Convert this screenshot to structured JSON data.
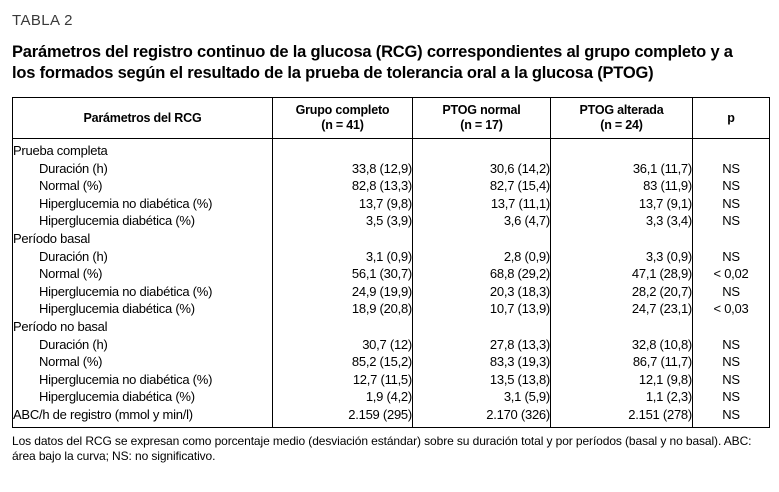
{
  "table_label": "TABLA 2",
  "title": "Parámetros del registro continuo de la glucosa (RCG) correspondientes al grupo completo y a los formados según el resultado de la prueba de tolerancia oral a la glucosa (PTOG)",
  "table": {
    "columns": [
      {
        "label": "Parámetros del RCG",
        "sub": ""
      },
      {
        "label": "Grupo completo",
        "sub": "(n = 41)"
      },
      {
        "label": "PTOG normal",
        "sub": "(n = 17)"
      },
      {
        "label": "PTOG alterada",
        "sub": "(n = 24)"
      },
      {
        "label": "p",
        "sub": ""
      }
    ],
    "rows": [
      {
        "label": "Prueba completa",
        "section": true,
        "indent": false,
        "values": [
          "",
          "",
          "",
          ""
        ]
      },
      {
        "label": "Duración (h)",
        "section": false,
        "indent": true,
        "values": [
          "33,8 (12,9)",
          "30,6 (14,2)",
          "36,1 (11,7)",
          "NS"
        ]
      },
      {
        "label": "Normal (%)",
        "section": false,
        "indent": true,
        "values": [
          "82,8 (13,3)",
          "82,7 (15,4)",
          "83 (11,9)",
          "NS"
        ]
      },
      {
        "label": "Hiperglucemia no diabética (%)",
        "section": false,
        "indent": true,
        "values": [
          "13,7 (9,8)",
          "13,7 (11,1)",
          "13,7 (9,1)",
          "NS"
        ]
      },
      {
        "label": "Hiperglucemia diabética (%)",
        "section": false,
        "indent": true,
        "values": [
          "3,5 (3,9)",
          "3,6 (4,7)",
          "3,3 (3,4)",
          "NS"
        ]
      },
      {
        "label": "Período basal",
        "section": true,
        "indent": false,
        "values": [
          "",
          "",
          "",
          ""
        ]
      },
      {
        "label": "Duración (h)",
        "section": false,
        "indent": true,
        "values": [
          "3,1 (0,9)",
          "2,8 (0,9)",
          "3,3 (0,9)",
          "NS"
        ]
      },
      {
        "label": "Normal (%)",
        "section": false,
        "indent": true,
        "values": [
          "56,1 (30,7)",
          "68,8 (29,2)",
          "47,1 (28,9)",
          "< 0,02"
        ]
      },
      {
        "label": "Hiperglucemia no diabética (%)",
        "section": false,
        "indent": true,
        "values": [
          "24,9 (19,9)",
          "20,3 (18,3)",
          "28,2 (20,7)",
          "NS"
        ]
      },
      {
        "label": "Hiperglucemia diabética (%)",
        "section": false,
        "indent": true,
        "values": [
          "18,9 (20,8)",
          "10,7 (13,9)",
          "24,7 (23,1)",
          "< 0,03"
        ]
      },
      {
        "label": "Período no basal",
        "section": true,
        "indent": false,
        "values": [
          "",
          "",
          "",
          ""
        ]
      },
      {
        "label": "Duración (h)",
        "section": false,
        "indent": true,
        "values": [
          "30,7 (12)",
          "27,8 (13,3)",
          "32,8 (10,8)",
          "NS"
        ]
      },
      {
        "label": "Normal (%)",
        "section": false,
        "indent": true,
        "values": [
          "85,2 (15,2)",
          "83,3 (19,3)",
          "86,7 (11,7)",
          "NS"
        ]
      },
      {
        "label": "Hiperglucemia no diabética (%)",
        "section": false,
        "indent": true,
        "values": [
          "12,7 (11,5)",
          "13,5 (13,8)",
          "12,1 (9,8)",
          "NS"
        ]
      },
      {
        "label": "Hiperglucemia diabética (%)",
        "section": false,
        "indent": true,
        "values": [
          "1,9 (4,2)",
          "3,1 (5,9)",
          "1,1 (2,3)",
          "NS"
        ]
      },
      {
        "label": "ABC/h de registro (mmol y min/l)",
        "section": false,
        "indent": false,
        "values": [
          "2.159 (295)",
          "2.170 (326)",
          "2.151 (278)",
          "NS"
        ]
      }
    ]
  },
  "footnote": "Los datos del RCG se expresan como porcentaje medio (desviación estándar) sobre su duración total y por períodos (basal y no basal). ABC: área bajo la curva; NS: no significativo."
}
